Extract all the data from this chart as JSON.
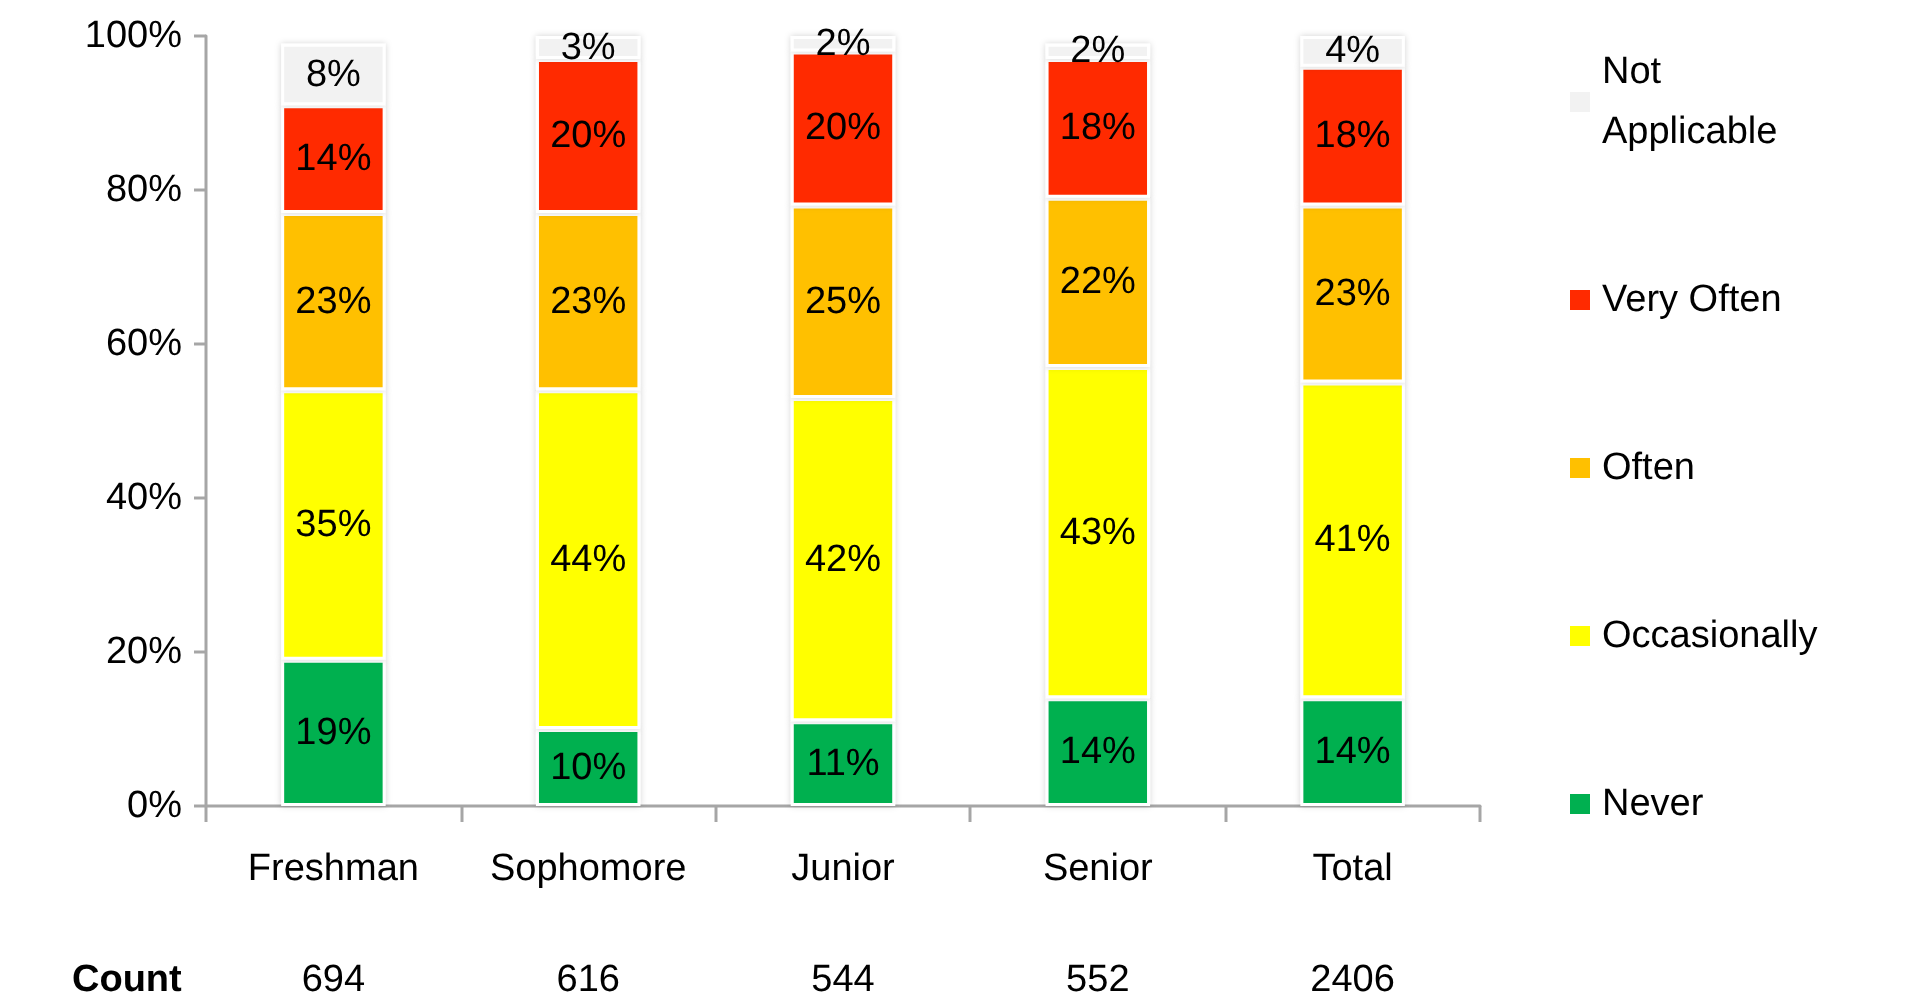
{
  "chart_data": {
    "type": "bar",
    "stacked": true,
    "categories": [
      "Freshman",
      "Sophomore",
      "Junior",
      "Senior",
      "Total"
    ],
    "series": [
      {
        "name": "Never",
        "color": "#00b050",
        "values": [
          19,
          10,
          11,
          14,
          14
        ],
        "value_labels": [
          "19%",
          "10%",
          "11%",
          "14%",
          "14%"
        ]
      },
      {
        "name": "Occasionally",
        "color": "#ffff00",
        "values": [
          35,
          44,
          42,
          43,
          41
        ],
        "value_labels": [
          "35%",
          "44%",
          "42%",
          "43%",
          "41%"
        ]
      },
      {
        "name": "Often",
        "color": "#ffc000",
        "values": [
          23,
          23,
          25,
          22,
          23
        ],
        "value_labels": [
          "23%",
          "23%",
          "25%",
          "22%",
          "23%"
        ]
      },
      {
        "name": "Very Often",
        "color": "#ff2a00",
        "values": [
          14,
          20,
          20,
          18,
          18
        ],
        "value_labels": [
          "14%",
          "20%",
          "20%",
          "18%",
          "18%"
        ]
      },
      {
        "name": "Not Applicable",
        "color": "#f2f2f2",
        "values": [
          8,
          3,
          2,
          2,
          4
        ],
        "value_labels": [
          "8%",
          "3%",
          "2%",
          "2%",
          "4%"
        ]
      }
    ],
    "ylim": [
      0,
      100
    ],
    "yticks": [
      {
        "value": 0,
        "label": "0%"
      },
      {
        "value": 20,
        "label": "20%"
      },
      {
        "value": 40,
        "label": "40%"
      },
      {
        "value": 60,
        "label": "60%"
      },
      {
        "value": 80,
        "label": "80%"
      },
      {
        "value": 100,
        "label": "100%"
      }
    ],
    "grid": false,
    "legend": "right",
    "annotations": [
      "Count",
      "694",
      "616",
      "544",
      "552",
      "2406"
    ]
  }
}
